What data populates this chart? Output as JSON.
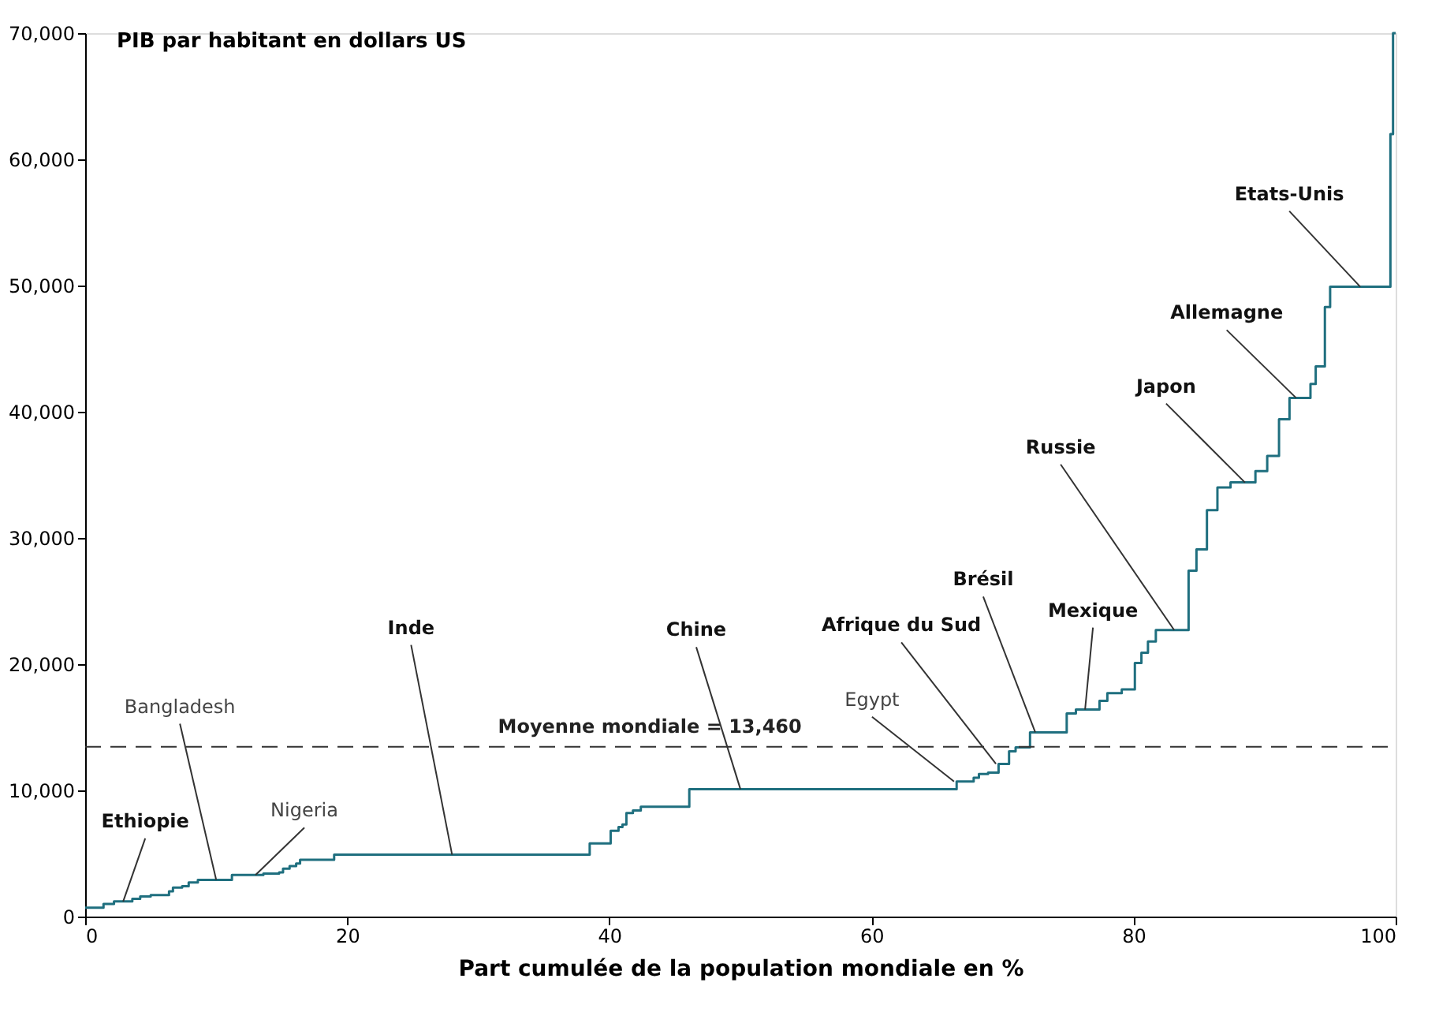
{
  "chart_data": {
    "type": "step",
    "title": "PIB par habitant en dollars US",
    "xlabel": "Part cumulée de la population mondiale en %",
    "x": [
      0,
      1.4,
      2.2,
      3.6,
      4.2,
      5.0,
      6.4,
      6.7,
      7.4,
      7.9,
      8.6,
      11.2,
      13.6,
      14.8,
      15.1,
      15.6,
      16.1,
      16.4,
      19.0,
      20.4,
      38.5,
      40.1,
      40.7,
      41.0,
      41.3,
      41.8,
      42.4,
      46.1,
      66.5,
      67.8,
      68.2,
      68.9,
      69.7,
      70.5,
      71.0,
      72.1,
      74.9,
      75.6,
      77.4,
      78.0,
      79.1,
      80.1,
      80.6,
      81.1,
      81.7,
      84.2,
      84.8,
      85.6,
      86.4,
      87.4,
      89.3,
      90.2,
      91.1,
      91.9,
      93.5,
      93.9,
      94.6,
      95.0,
      99.6,
      99.8,
      100
    ],
    "series": [
      {
        "color": "#1f6f7f",
        "values": [
          700,
          1000,
          1200,
          1400,
          1600,
          1700,
          2000,
          2300,
          2400,
          2700,
          2900,
          3300,
          3400,
          3500,
          3800,
          4000,
          4200,
          4500,
          4900,
          4900,
          5800,
          6800,
          7100,
          7300,
          8200,
          8400,
          8700,
          10100,
          10700,
          11000,
          11300,
          11400,
          12100,
          13100,
          13400,
          14600,
          16100,
          16400,
          17100,
          17700,
          18000,
          20100,
          20900,
          21800,
          22700,
          27400,
          29100,
          32200,
          34000,
          34400,
          35300,
          36500,
          39400,
          41100,
          42200,
          43600,
          48300,
          49900,
          62000,
          70000,
          70000
        ]
      }
    ],
    "xlim": [
      0,
      100
    ],
    "xticks": [
      0,
      20,
      40,
      60,
      80,
      100
    ],
    "ylim": [
      0,
      70000
    ],
    "yticks": [
      0,
      {
        "value": 10000,
        "label": "10,000"
      },
      {
        "value": 20000,
        "label": "20,000"
      },
      {
        "value": 30000,
        "label": "30,000"
      },
      {
        "value": 40000,
        "label": "40,000"
      },
      {
        "value": 50000,
        "label": "50,000"
      },
      {
        "value": 60000,
        "label": "60,000"
      },
      {
        "value": 70000,
        "label": "70,000"
      }
    ],
    "grid": false,
    "ref_lines": [
      {
        "axis": "y",
        "value": 13460,
        "label": "Moyenne mondiale = 13,460",
        "line_style": "dashed",
        "color": "#333333"
      }
    ],
    "annotations": [
      {
        "text": "Ethiopie",
        "x": 2.9,
        "y": 1200
      },
      {
        "text": "Bangladesh",
        "x": 10.0,
        "y": 2900
      },
      {
        "text": "Nigeria",
        "x": 13.0,
        "y": 3300
      },
      {
        "text": "Inde",
        "x": 28,
        "y": 4900
      },
      {
        "text": "Chine",
        "x": 50,
        "y": 10100
      },
      {
        "text": "Egypt",
        "x": 66.3,
        "y": 10700
      },
      {
        "text": "Afrique du Sud",
        "x": 69.5,
        "y": 12100
      },
      {
        "text": "Brésil",
        "x": 72.5,
        "y": 14600
      },
      {
        "text": "Mexique",
        "x": 76.3,
        "y": 16400
      },
      {
        "text": "Russie",
        "x": 83.1,
        "y": 22700
      },
      {
        "text": "Japon",
        "x": 88.5,
        "y": 34400
      },
      {
        "text": "Allemagne",
        "x": 92.4,
        "y": 41100
      },
      {
        "text": "Etats-Unis",
        "x": 97.3,
        "y": 49900
      }
    ]
  }
}
